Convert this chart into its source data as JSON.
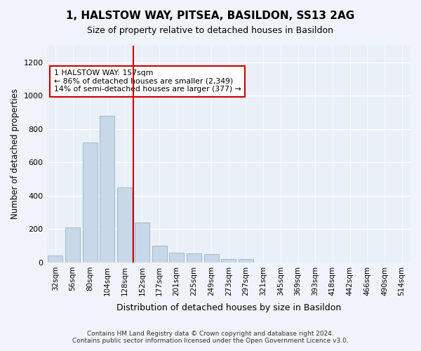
{
  "title_line1": "1, HALSTOW WAY, PITSEA, BASILDON, SS13 2AG",
  "title_line2": "Size of property relative to detached houses in Basildon",
  "xlabel": "Distribution of detached houses by size in Basildon",
  "ylabel": "Number of detached properties",
  "categories": [
    "32sqm",
    "56sqm",
    "80sqm",
    "104sqm",
    "128sqm",
    "152sqm",
    "177sqm",
    "201sqm",
    "225sqm",
    "249sqm",
    "273sqm",
    "297sqm",
    "321sqm",
    "345sqm",
    "369sqm",
    "393sqm",
    "418sqm",
    "442sqm",
    "466sqm",
    "490sqm",
    "514sqm"
  ],
  "values": [
    40,
    210,
    720,
    880,
    450,
    240,
    100,
    60,
    55,
    50,
    20,
    20,
    0,
    0,
    0,
    0,
    0,
    0,
    0,
    0,
    0
  ],
  "bar_color": "#c8d8e8",
  "bar_edge_color": "#a0b8cc",
  "property_line_x": 4.5,
  "property_line_color": "#cc0000",
  "annotation_text": "1 HALSTOW WAY: 157sqm\n← 86% of detached houses are smaller (2,349)\n14% of semi-detached houses are larger (377) →",
  "annotation_box_color": "#ffffff",
  "annotation_box_edge_color": "#cc0000",
  "ylim": [
    0,
    1300
  ],
  "yticks": [
    0,
    200,
    400,
    600,
    800,
    1000,
    1200
  ],
  "plot_bg_color": "#eaf0f8",
  "fig_bg_color": "#f0f4fa",
  "grid_color": "#ffffff",
  "footer_line1": "Contains HM Land Registry data © Crown copyright and database right 2024.",
  "footer_line2": "Contains public sector information licensed under the Open Government Licence v3.0."
}
